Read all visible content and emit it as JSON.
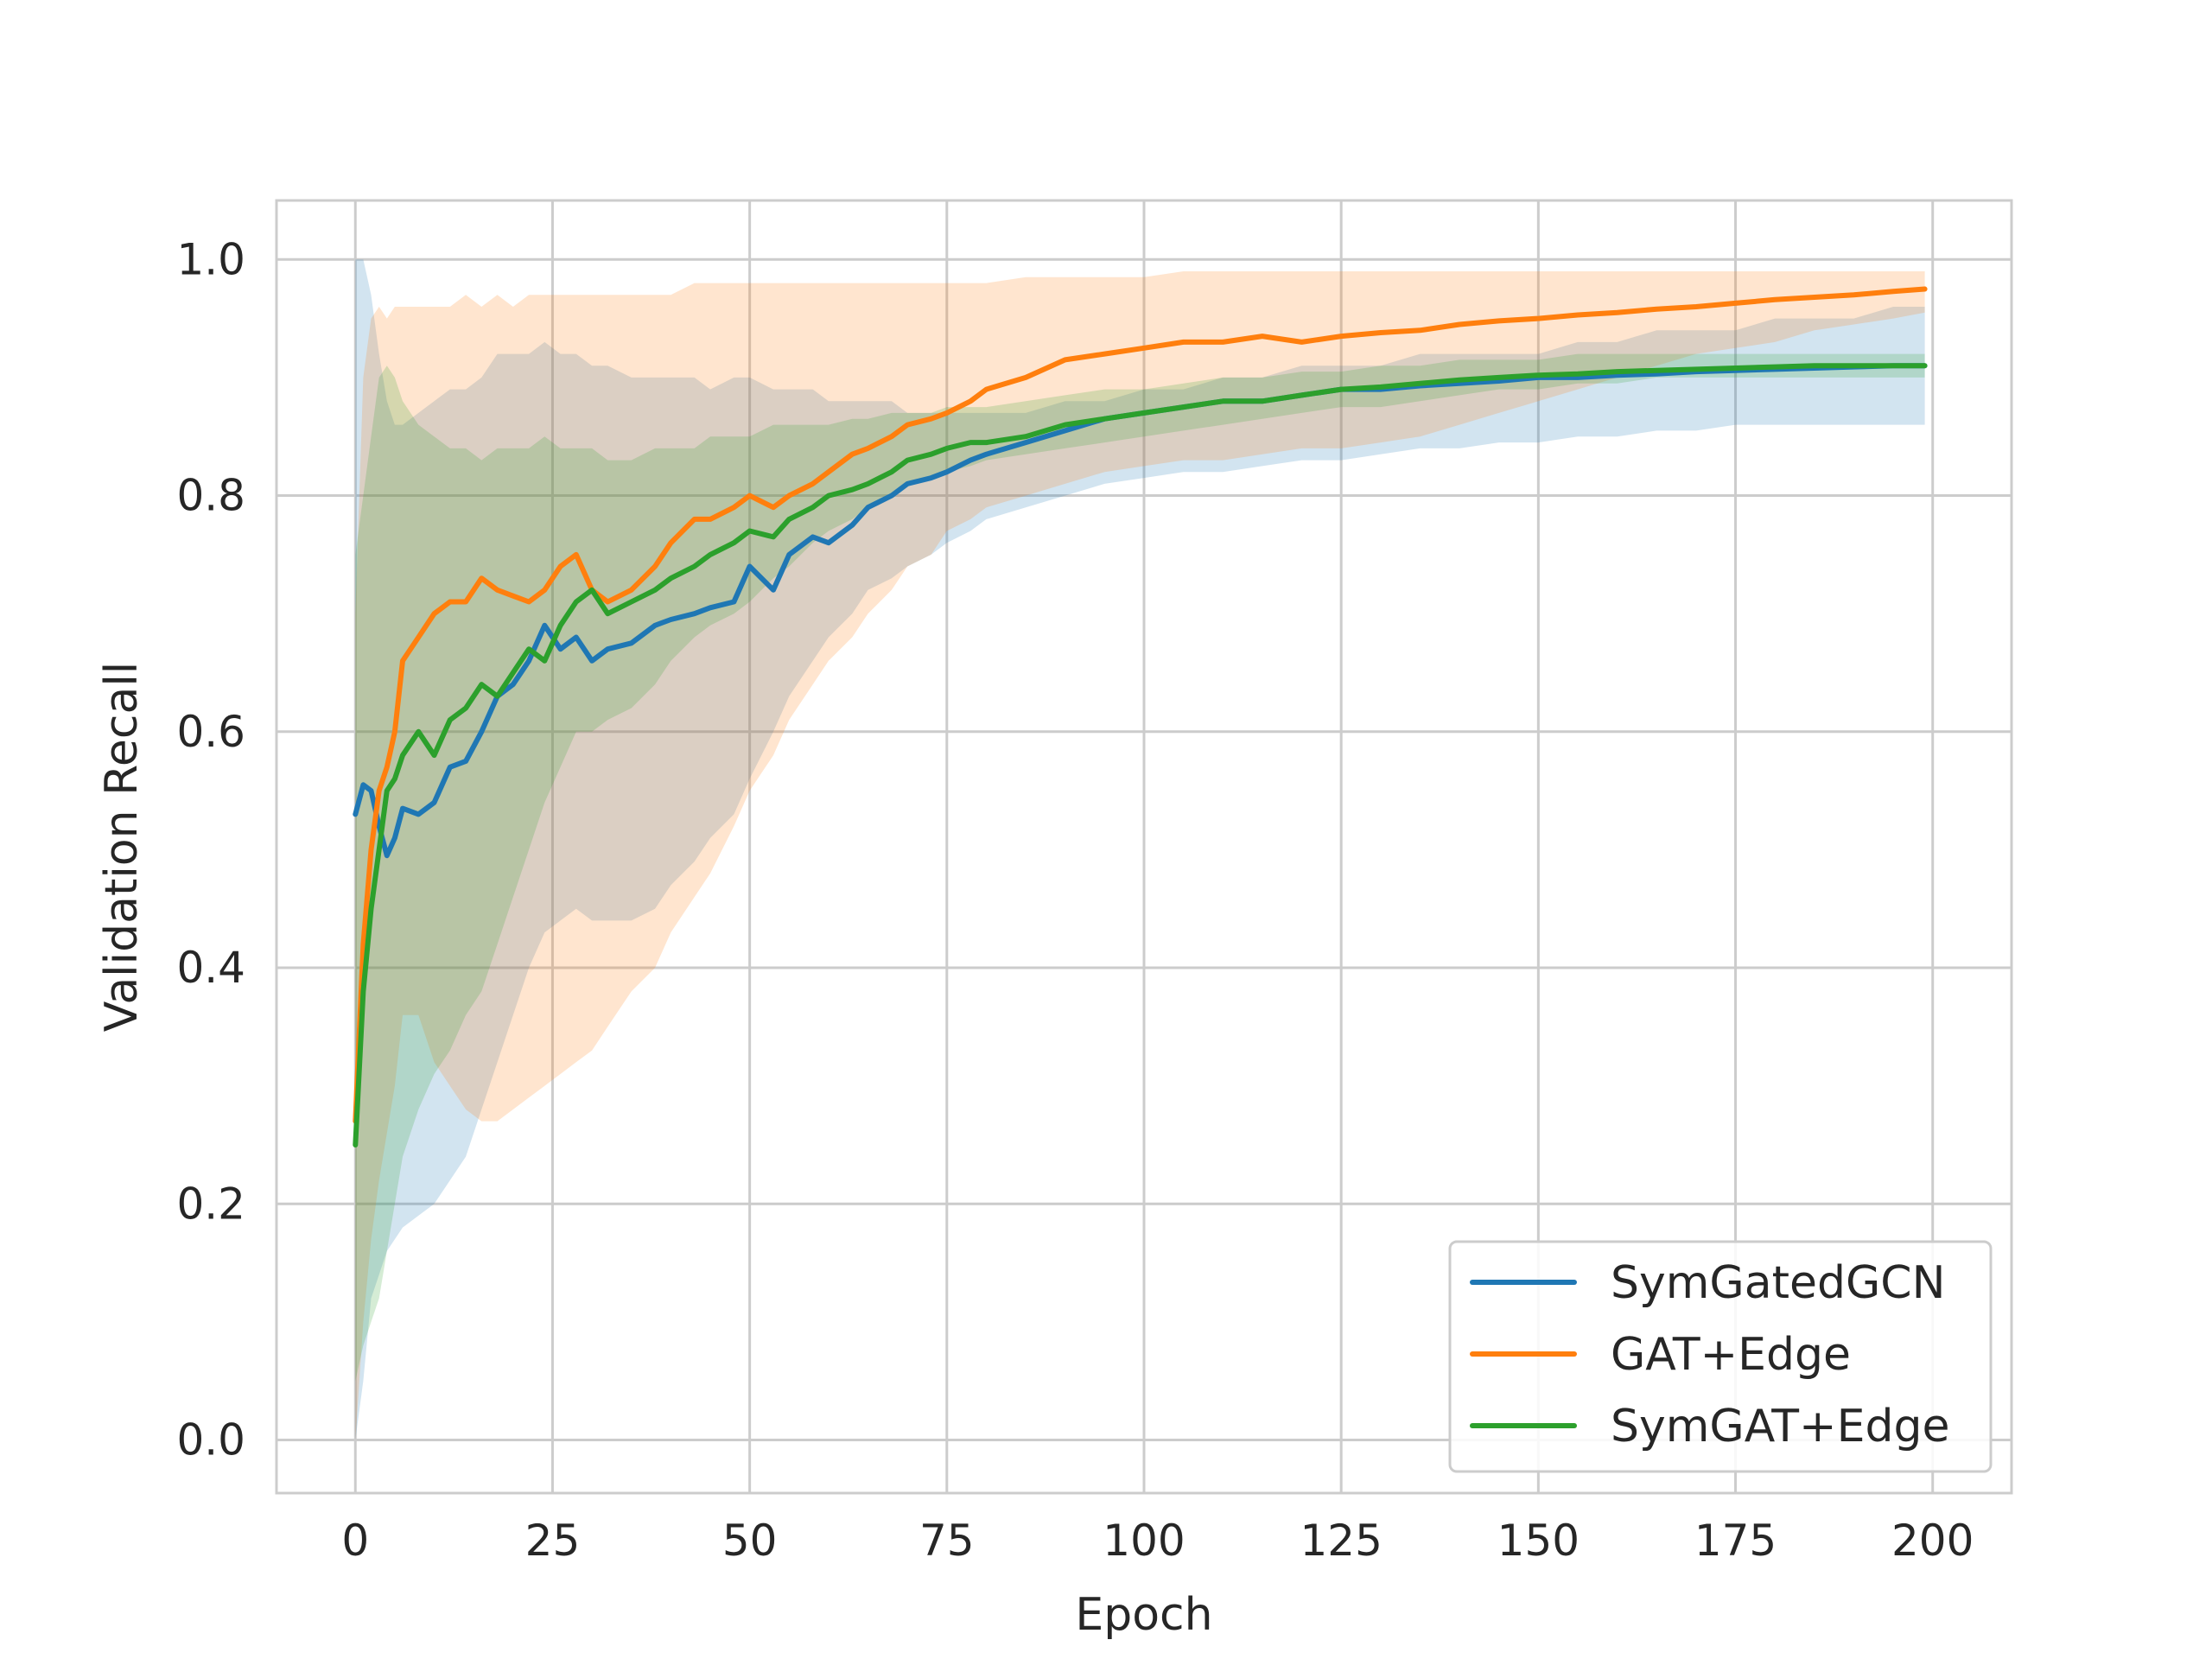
{
  "chart_data": {
    "type": "line",
    "title": "",
    "xlabel": "Epoch",
    "ylabel": "Validation Recall",
    "xlim": [
      -10,
      210
    ],
    "ylim": [
      -0.045,
      1.05
    ],
    "xticks": [
      0,
      25,
      50,
      75,
      100,
      125,
      150,
      175,
      200
    ],
    "yticks": [
      0.0,
      0.2,
      0.4,
      0.6,
      0.8,
      1.0
    ],
    "xtick_labels": [
      "0",
      "25",
      "50",
      "75",
      "100",
      "125",
      "150",
      "175",
      "200"
    ],
    "ytick_labels": [
      "0.0",
      "0.2",
      "0.4",
      "0.6",
      "0.8",
      "1.0"
    ],
    "grid": true,
    "legend_position": "bottom-right",
    "series": [
      {
        "name": "SymGatedGCN",
        "color": "#1f77b4",
        "x": [
          0,
          1,
          2,
          3,
          4,
          5,
          6,
          8,
          10,
          12,
          14,
          16,
          18,
          20,
          22,
          24,
          26,
          28,
          30,
          32,
          35,
          38,
          40,
          43,
          45,
          48,
          50,
          53,
          55,
          58,
          60,
          63,
          65,
          68,
          70,
          73,
          75,
          78,
          80,
          85,
          90,
          95,
          100,
          105,
          110,
          115,
          120,
          125,
          130,
          135,
          140,
          145,
          150,
          155,
          160,
          165,
          170,
          175,
          180,
          185,
          190,
          195,
          199
        ],
        "values": [
          0.53,
          0.555,
          0.55,
          0.52,
          0.495,
          0.51,
          0.535,
          0.53,
          0.54,
          0.57,
          0.575,
          0.6,
          0.63,
          0.64,
          0.66,
          0.69,
          0.67,
          0.68,
          0.66,
          0.67,
          0.675,
          0.69,
          0.695,
          0.7,
          0.705,
          0.71,
          0.74,
          0.72,
          0.75,
          0.765,
          0.76,
          0.775,
          0.79,
          0.8,
          0.81,
          0.815,
          0.82,
          0.83,
          0.835,
          0.845,
          0.855,
          0.865,
          0.87,
          0.875,
          0.88,
          0.88,
          0.885,
          0.89,
          0.89,
          0.893,
          0.895,
          0.897,
          0.9,
          0.9,
          0.902,
          0.903,
          0.905,
          0.906,
          0.907,
          0.908,
          0.909,
          0.91,
          0.91
        ],
        "upper": [
          1.0,
          1.0,
          0.97,
          0.92,
          0.88,
          0.86,
          0.86,
          0.87,
          0.88,
          0.89,
          0.89,
          0.9,
          0.92,
          0.92,
          0.92,
          0.93,
          0.92,
          0.92,
          0.91,
          0.91,
          0.9,
          0.9,
          0.9,
          0.9,
          0.89,
          0.9,
          0.9,
          0.89,
          0.89,
          0.89,
          0.88,
          0.88,
          0.88,
          0.88,
          0.87,
          0.87,
          0.87,
          0.87,
          0.87,
          0.87,
          0.88,
          0.88,
          0.89,
          0.89,
          0.9,
          0.9,
          0.91,
          0.91,
          0.91,
          0.92,
          0.92,
          0.92,
          0.92,
          0.93,
          0.93,
          0.94,
          0.94,
          0.94,
          0.95,
          0.95,
          0.95,
          0.96,
          0.96
        ],
        "lower": [
          0.0,
          0.05,
          0.12,
          0.14,
          0.16,
          0.17,
          0.18,
          0.19,
          0.2,
          0.22,
          0.24,
          0.28,
          0.32,
          0.36,
          0.4,
          0.43,
          0.44,
          0.45,
          0.44,
          0.44,
          0.44,
          0.45,
          0.47,
          0.49,
          0.51,
          0.53,
          0.56,
          0.6,
          0.63,
          0.66,
          0.68,
          0.7,
          0.72,
          0.73,
          0.74,
          0.75,
          0.76,
          0.77,
          0.78,
          0.79,
          0.8,
          0.81,
          0.815,
          0.82,
          0.82,
          0.825,
          0.83,
          0.83,
          0.835,
          0.84,
          0.84,
          0.845,
          0.845,
          0.85,
          0.85,
          0.855,
          0.855,
          0.86,
          0.86,
          0.86,
          0.86,
          0.86,
          0.86
        ]
      },
      {
        "name": "GAT+Edge",
        "color": "#ff7f0e",
        "x": [
          0,
          1,
          2,
          3,
          4,
          5,
          6,
          8,
          10,
          12,
          14,
          16,
          18,
          20,
          22,
          24,
          26,
          28,
          30,
          32,
          35,
          38,
          40,
          43,
          45,
          48,
          50,
          53,
          55,
          58,
          60,
          63,
          65,
          68,
          70,
          73,
          75,
          78,
          80,
          85,
          90,
          95,
          100,
          105,
          110,
          115,
          120,
          125,
          130,
          135,
          140,
          145,
          150,
          155,
          160,
          165,
          170,
          175,
          180,
          185,
          190,
          195,
          199
        ],
        "values": [
          0.27,
          0.42,
          0.5,
          0.55,
          0.57,
          0.6,
          0.66,
          0.68,
          0.7,
          0.71,
          0.71,
          0.73,
          0.72,
          0.715,
          0.71,
          0.72,
          0.74,
          0.75,
          0.72,
          0.71,
          0.72,
          0.74,
          0.76,
          0.78,
          0.78,
          0.79,
          0.8,
          0.79,
          0.8,
          0.81,
          0.82,
          0.835,
          0.84,
          0.85,
          0.86,
          0.865,
          0.87,
          0.88,
          0.89,
          0.9,
          0.915,
          0.92,
          0.925,
          0.93,
          0.93,
          0.935,
          0.93,
          0.935,
          0.938,
          0.94,
          0.945,
          0.948,
          0.95,
          0.953,
          0.955,
          0.958,
          0.96,
          0.963,
          0.966,
          0.968,
          0.97,
          0.973,
          0.975
        ],
        "upper": [
          0.7,
          0.9,
          0.95,
          0.96,
          0.95,
          0.96,
          0.96,
          0.96,
          0.96,
          0.96,
          0.97,
          0.96,
          0.97,
          0.96,
          0.97,
          0.97,
          0.97,
          0.97,
          0.97,
          0.97,
          0.97,
          0.97,
          0.97,
          0.98,
          0.98,
          0.98,
          0.98,
          0.98,
          0.98,
          0.98,
          0.98,
          0.98,
          0.98,
          0.98,
          0.98,
          0.98,
          0.98,
          0.98,
          0.98,
          0.985,
          0.985,
          0.985,
          0.985,
          0.99,
          0.99,
          0.99,
          0.99,
          0.99,
          0.99,
          0.99,
          0.99,
          0.99,
          0.99,
          0.99,
          0.99,
          0.99,
          0.99,
          0.99,
          0.99,
          0.99,
          0.99,
          0.99,
          0.99
        ],
        "lower": [
          0.0,
          0.1,
          0.17,
          0.22,
          0.26,
          0.3,
          0.36,
          0.36,
          0.32,
          0.3,
          0.28,
          0.27,
          0.27,
          0.28,
          0.29,
          0.3,
          0.31,
          0.32,
          0.33,
          0.35,
          0.38,
          0.4,
          0.43,
          0.46,
          0.48,
          0.52,
          0.55,
          0.58,
          0.61,
          0.64,
          0.66,
          0.68,
          0.7,
          0.72,
          0.74,
          0.75,
          0.77,
          0.78,
          0.79,
          0.8,
          0.81,
          0.82,
          0.825,
          0.83,
          0.83,
          0.835,
          0.84,
          0.84,
          0.845,
          0.85,
          0.86,
          0.87,
          0.88,
          0.89,
          0.9,
          0.91,
          0.92,
          0.925,
          0.93,
          0.94,
          0.945,
          0.95,
          0.955
        ]
      },
      {
        "name": "SymGAT+Edge",
        "color": "#2ca02c",
        "x": [
          0,
          1,
          2,
          3,
          4,
          5,
          6,
          8,
          10,
          12,
          14,
          16,
          18,
          20,
          22,
          24,
          26,
          28,
          30,
          32,
          35,
          38,
          40,
          43,
          45,
          48,
          50,
          53,
          55,
          58,
          60,
          63,
          65,
          68,
          70,
          73,
          75,
          78,
          80,
          85,
          90,
          95,
          100,
          105,
          110,
          115,
          120,
          125,
          130,
          135,
          140,
          145,
          150,
          155,
          160,
          165,
          170,
          175,
          180,
          185,
          190,
          195,
          199
        ],
        "values": [
          0.25,
          0.38,
          0.45,
          0.5,
          0.55,
          0.56,
          0.58,
          0.6,
          0.58,
          0.61,
          0.62,
          0.64,
          0.63,
          0.65,
          0.67,
          0.66,
          0.69,
          0.71,
          0.72,
          0.7,
          0.71,
          0.72,
          0.73,
          0.74,
          0.75,
          0.76,
          0.77,
          0.765,
          0.78,
          0.79,
          0.8,
          0.805,
          0.81,
          0.82,
          0.83,
          0.835,
          0.84,
          0.845,
          0.845,
          0.85,
          0.86,
          0.865,
          0.87,
          0.875,
          0.88,
          0.88,
          0.885,
          0.89,
          0.892,
          0.895,
          0.898,
          0.9,
          0.902,
          0.903,
          0.905,
          0.906,
          0.907,
          0.908,
          0.909,
          0.91,
          0.91,
          0.91,
          0.91
        ],
        "upper": [
          0.75,
          0.8,
          0.85,
          0.9,
          0.91,
          0.9,
          0.88,
          0.86,
          0.85,
          0.84,
          0.84,
          0.83,
          0.84,
          0.84,
          0.84,
          0.85,
          0.84,
          0.84,
          0.84,
          0.83,
          0.83,
          0.84,
          0.84,
          0.84,
          0.85,
          0.85,
          0.85,
          0.86,
          0.86,
          0.86,
          0.86,
          0.865,
          0.865,
          0.87,
          0.87,
          0.87,
          0.875,
          0.875,
          0.875,
          0.88,
          0.885,
          0.89,
          0.89,
          0.895,
          0.9,
          0.9,
          0.905,
          0.905,
          0.91,
          0.91,
          0.915,
          0.915,
          0.915,
          0.92,
          0.92,
          0.92,
          0.92,
          0.92,
          0.92,
          0.92,
          0.92,
          0.92,
          0.92
        ],
        "lower": [
          0.05,
          0.08,
          0.1,
          0.12,
          0.16,
          0.2,
          0.24,
          0.28,
          0.31,
          0.33,
          0.36,
          0.38,
          0.42,
          0.46,
          0.5,
          0.54,
          0.57,
          0.6,
          0.6,
          0.61,
          0.62,
          0.64,
          0.66,
          0.68,
          0.69,
          0.7,
          0.71,
          0.73,
          0.74,
          0.76,
          0.77,
          0.78,
          0.79,
          0.8,
          0.81,
          0.815,
          0.82,
          0.825,
          0.83,
          0.835,
          0.84,
          0.845,
          0.85,
          0.855,
          0.86,
          0.865,
          0.87,
          0.875,
          0.875,
          0.88,
          0.885,
          0.89,
          0.89,
          0.895,
          0.895,
          0.9,
          0.9,
          0.9,
          0.9,
          0.9,
          0.9,
          0.9,
          0.9
        ]
      }
    ]
  }
}
